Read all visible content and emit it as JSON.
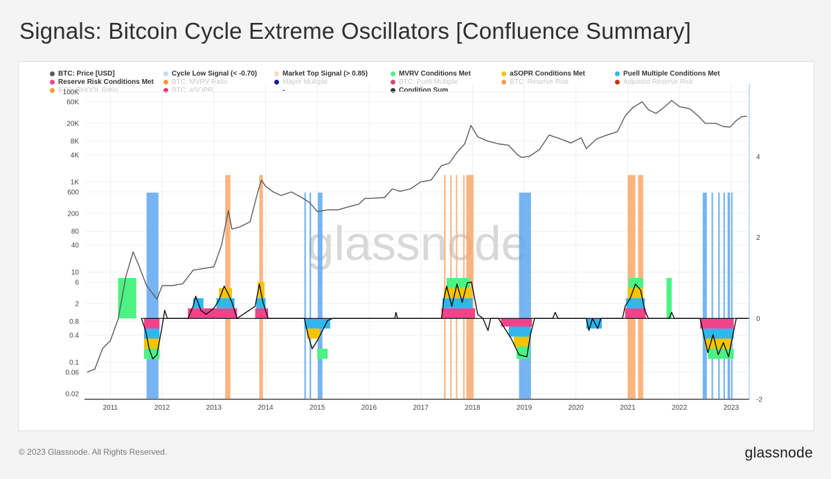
{
  "header": {
    "title": "Signals: Bitcoin Cycle Extreme Oscillators [Confluence Summary]"
  },
  "footer": {
    "copyright": "© 2023 Glassnode. All Rights Reserved.",
    "logo_text": "glassnode"
  },
  "watermark": "glassnode",
  "colors": {
    "price": "#5a5a5a",
    "cycle_low": "#aeccec",
    "market_top": "#f9d3b4",
    "mvrv": "#4cf284",
    "asopr": "#f5c400",
    "puell": "#33b5ee",
    "reserve_risk": "#f0448a",
    "condition_sum": "#000000",
    "low_band": "#5ea7f0",
    "top_band": "#f9a86a"
  },
  "legend": [
    {
      "label": "BTC: Price [USD]",
      "color": "#5a5a5a",
      "active": true
    },
    {
      "label": "Cycle Low Signal (< -0.70)",
      "color": "#c5dcf3",
      "active": true
    },
    {
      "label": "Market Top Signal (> 0.85)",
      "color": "#fadcc4",
      "active": true
    },
    {
      "label": "MVRV Conditions Met",
      "color": "#4cf284",
      "active": true
    },
    {
      "label": "aSOPR Conditions Met",
      "color": "#f5c400",
      "active": true
    },
    {
      "label": "Puell Multiple Conditions Met",
      "color": "#33b5ee",
      "active": true
    },
    {
      "label": "Reserve Risk Conditions Met",
      "color": "#f0448a",
      "active": true
    },
    {
      "label": "BTC: MVRV Ratio",
      "color": "#f39c33",
      "active": false
    },
    {
      "label": "Mayer Multiple",
      "color": "#1a1a99",
      "active": false
    },
    {
      "label": "BTC: Puell Multiple",
      "color": "#d6457a",
      "active": false
    },
    {
      "label": "BTC: Reserve Risk",
      "color": "#f6a04d",
      "active": false
    },
    {
      "label": "Adjusted Reserve Risk",
      "color": "#cc3311",
      "active": false
    },
    {
      "label": "BTC: RHODL Ratio",
      "color": "#f39c33",
      "active": false
    },
    {
      "label": "BTC: aSOPR",
      "color": "#e0336a",
      "active": false
    },
    {
      "label": "-",
      "color": null,
      "active": true
    },
    {
      "label": "Condition Sum",
      "color": "#333333",
      "active": true
    }
  ],
  "chart_data": {
    "type": "line",
    "title": "Signals: Bitcoin Cycle Extreme Oscillators [Confluence Summary]",
    "y_scale_left": "log",
    "y_left_ticks": [
      "100K",
      "60K",
      "20K",
      "8K",
      "4K",
      "1K",
      "600",
      "200",
      "80",
      "40",
      "10",
      "6",
      "2",
      "0.8",
      "0.4",
      "0.1",
      "0.06",
      "0.02"
    ],
    "y_right_ticks": [
      "4",
      "2",
      "0",
      "-2"
    ],
    "y_right_range": [
      -2,
      5.8
    ],
    "x_ticks": [
      "2011",
      "2012",
      "2013",
      "2014",
      "2015",
      "2016",
      "2017",
      "2018",
      "2019",
      "2020",
      "2021",
      "2022",
      "2023"
    ],
    "x_range": [
      2010.5,
      2023.35
    ],
    "grid": true,
    "legend_position": "top",
    "series": [
      {
        "name": "BTC: Price [USD]",
        "points": [
          [
            2010.55,
            0.06
          ],
          [
            2010.7,
            0.07
          ],
          [
            2010.85,
            0.2
          ],
          [
            2011.0,
            0.3
          ],
          [
            2011.15,
            0.9
          ],
          [
            2011.3,
            8
          ],
          [
            2011.44,
            28
          ],
          [
            2011.55,
            14
          ],
          [
            2011.7,
            5
          ],
          [
            2011.9,
            2.5
          ],
          [
            2012.0,
            5
          ],
          [
            2012.2,
            5
          ],
          [
            2012.4,
            5.5
          ],
          [
            2012.6,
            11
          ],
          [
            2012.8,
            12
          ],
          [
            2013.0,
            13
          ],
          [
            2013.15,
            40
          ],
          [
            2013.28,
            230
          ],
          [
            2013.35,
            90
          ],
          [
            2013.5,
            100
          ],
          [
            2013.7,
            130
          ],
          [
            2013.85,
            600
          ],
          [
            2013.92,
            1100
          ],
          [
            2014.0,
            800
          ],
          [
            2014.15,
            600
          ],
          [
            2014.3,
            500
          ],
          [
            2014.5,
            600
          ],
          [
            2014.7,
            450
          ],
          [
            2014.85,
            350
          ],
          [
            2015.0,
            220
          ],
          [
            2015.2,
            240
          ],
          [
            2015.4,
            240
          ],
          [
            2015.6,
            280
          ],
          [
            2015.8,
            320
          ],
          [
            2015.92,
            430
          ],
          [
            2016.0,
            430
          ],
          [
            2016.3,
            450
          ],
          [
            2016.45,
            700
          ],
          [
            2016.6,
            620
          ],
          [
            2016.8,
            700
          ],
          [
            2017.0,
            1000
          ],
          [
            2017.2,
            1100
          ],
          [
            2017.4,
            2300
          ],
          [
            2017.55,
            2600
          ],
          [
            2017.7,
            4500
          ],
          [
            2017.85,
            7000
          ],
          [
            2017.97,
            18000
          ],
          [
            2018.1,
            10000
          ],
          [
            2018.3,
            8000
          ],
          [
            2018.5,
            7000
          ],
          [
            2018.7,
            6500
          ],
          [
            2018.87,
            4000
          ],
          [
            2018.95,
            3500
          ],
          [
            2019.1,
            3700
          ],
          [
            2019.3,
            5300
          ],
          [
            2019.48,
            11000
          ],
          [
            2019.7,
            9000
          ],
          [
            2019.9,
            7300
          ],
          [
            2020.1,
            9500
          ],
          [
            2020.2,
            5500
          ],
          [
            2020.4,
            9000
          ],
          [
            2020.6,
            11000
          ],
          [
            2020.8,
            13000
          ],
          [
            2020.95,
            29000
          ],
          [
            2021.1,
            45000
          ],
          [
            2021.28,
            60000
          ],
          [
            2021.4,
            40000
          ],
          [
            2021.55,
            33000
          ],
          [
            2021.7,
            45000
          ],
          [
            2021.85,
            64000
          ],
          [
            2022.0,
            47000
          ],
          [
            2022.2,
            42000
          ],
          [
            2022.35,
            30000
          ],
          [
            2022.5,
            20000
          ],
          [
            2022.7,
            20000
          ],
          [
            2022.85,
            17000
          ],
          [
            2022.98,
            16500
          ],
          [
            2023.1,
            23000
          ],
          [
            2023.2,
            28000
          ],
          [
            2023.3,
            29000
          ]
        ]
      },
      {
        "name": "Condition Sum",
        "points": [
          [
            2011.6,
            0
          ],
          [
            2011.68,
            -0.3
          ],
          [
            2011.75,
            -0.75
          ],
          [
            2011.82,
            -1.0
          ],
          [
            2011.9,
            -0.9
          ],
          [
            2012.0,
            -0.2
          ],
          [
            2012.05,
            0.2
          ],
          [
            2012.1,
            0
          ],
          [
            2012.5,
            0
          ],
          [
            2012.6,
            0.3
          ],
          [
            2012.65,
            0.55
          ],
          [
            2012.75,
            0.2
          ],
          [
            2012.85,
            0.1
          ],
          [
            2013.0,
            0.25
          ],
          [
            2013.1,
            0.45
          ],
          [
            2013.2,
            0.8
          ],
          [
            2013.28,
            0.6
          ],
          [
            2013.35,
            0.4
          ],
          [
            2013.45,
            0
          ],
          [
            2013.8,
            0.3
          ],
          [
            2013.88,
            0.85
          ],
          [
            2013.95,
            0.4
          ],
          [
            2014.05,
            0
          ],
          [
            2014.75,
            0
          ],
          [
            2014.82,
            -0.4
          ],
          [
            2014.9,
            -0.75
          ],
          [
            2015.0,
            -0.55
          ],
          [
            2015.1,
            -0.3
          ],
          [
            2015.2,
            -0.05
          ],
          [
            2015.3,
            0
          ],
          [
            2016.5,
            0
          ],
          [
            2016.52,
            0.15
          ],
          [
            2016.55,
            0
          ],
          [
            2017.4,
            0
          ],
          [
            2017.45,
            0.5
          ],
          [
            2017.5,
            0.8
          ],
          [
            2017.6,
            0.3
          ],
          [
            2017.7,
            0.85
          ],
          [
            2017.8,
            0.4
          ],
          [
            2017.9,
            0.88
          ],
          [
            2017.98,
            0.9
          ],
          [
            2018.1,
            0.1
          ],
          [
            2018.2,
            0
          ],
          [
            2018.3,
            -0.3
          ],
          [
            2018.35,
            0
          ],
          [
            2018.5,
            0
          ],
          [
            2018.6,
            -0.2
          ],
          [
            2018.75,
            -0.5
          ],
          [
            2018.9,
            -0.9
          ],
          [
            2019.05,
            -0.95
          ],
          [
            2019.12,
            -0.4
          ],
          [
            2019.2,
            0
          ],
          [
            2019.55,
            0
          ],
          [
            2019.6,
            0.15
          ],
          [
            2019.65,
            0
          ],
          [
            2020.2,
            0
          ],
          [
            2020.25,
            -0.3
          ],
          [
            2020.32,
            0
          ],
          [
            2020.42,
            -0.25
          ],
          [
            2020.48,
            0
          ],
          [
            2020.9,
            0
          ],
          [
            2020.95,
            0.3
          ],
          [
            2021.05,
            0.5
          ],
          [
            2021.15,
            0.85
          ],
          [
            2021.25,
            0.7
          ],
          [
            2021.33,
            0.2
          ],
          [
            2021.4,
            0
          ],
          [
            2021.8,
            0
          ],
          [
            2021.85,
            0.15
          ],
          [
            2021.9,
            0
          ],
          [
            2022.4,
            0
          ],
          [
            2022.45,
            -0.3
          ],
          [
            2022.55,
            -0.85
          ],
          [
            2022.65,
            -0.4
          ],
          [
            2022.75,
            -0.9
          ],
          [
            2022.85,
            -0.6
          ],
          [
            2022.95,
            -0.95
          ],
          [
            2023.05,
            -0.3
          ],
          [
            2023.1,
            0
          ],
          [
            2023.35,
            0
          ]
        ]
      }
    ],
    "cycle_low_windows": [
      [
        2011.7,
        2011.93
      ],
      [
        2014.75,
        2014.78
      ],
      [
        2014.85,
        2014.88
      ],
      [
        2015.01,
        2015.1
      ],
      [
        2018.9,
        2019.13
      ],
      [
        2022.45,
        2022.53
      ],
      [
        2022.62,
        2022.65
      ],
      [
        2022.75,
        2022.78
      ],
      [
        2022.85,
        2022.88
      ],
      [
        2022.93,
        2022.98
      ],
      [
        2023.0,
        2023.02
      ]
    ],
    "market_top_windows": [
      [
        2013.22,
        2013.32
      ],
      [
        2013.88,
        2013.95
      ],
      [
        2017.45,
        2017.48
      ],
      [
        2017.57,
        2017.58
      ],
      [
        2017.68,
        2017.7
      ],
      [
        2017.82,
        2017.84
      ],
      [
        2017.88,
        2018.02
      ],
      [
        2021.0,
        2021.15
      ],
      [
        2021.2,
        2021.3
      ]
    ]
  }
}
